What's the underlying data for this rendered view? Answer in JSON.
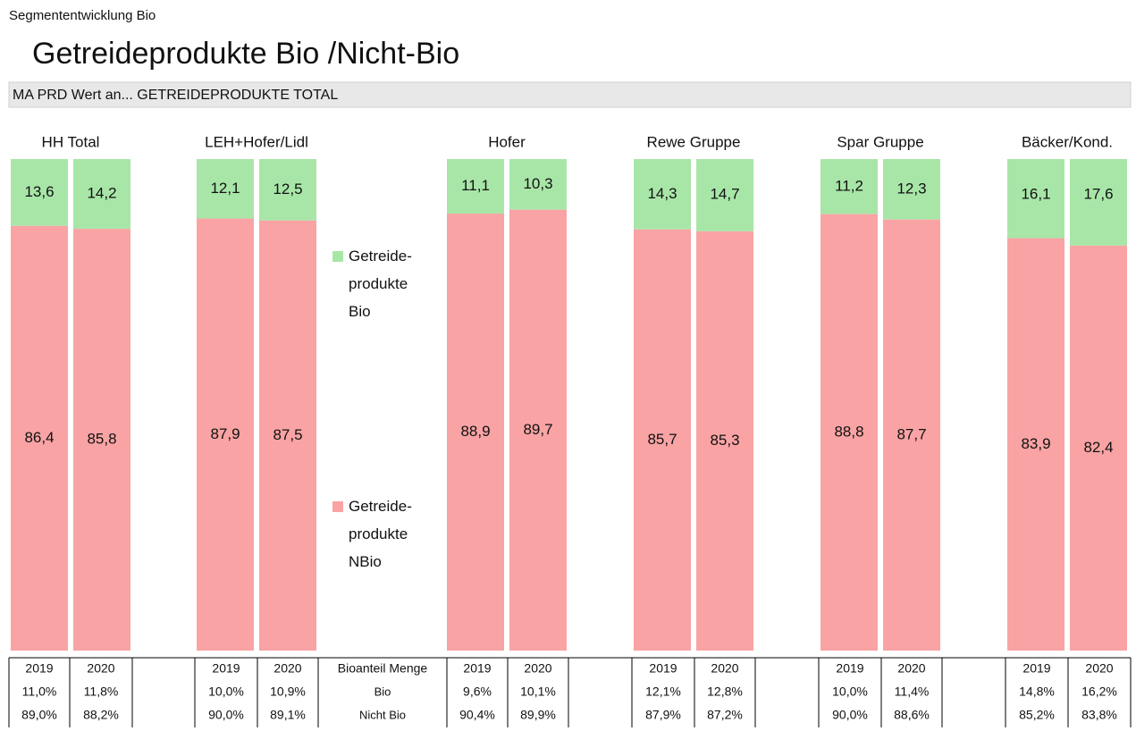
{
  "chart_data": {
    "type": "stacked_bar_100",
    "subtitle": "Segmententwicklung Bio",
    "title": "Getreideprodukte Bio /Nicht-Bio",
    "filter": "MA PRD Wert an... GETREIDEPRODUKTE TOTAL",
    "categories": [
      "HH Total",
      "LEH+Hofer/Lidl",
      "Hofer",
      "Rewe Gruppe",
      "Spar Gruppe",
      "Bäcker/Kond."
    ],
    "series": [
      {
        "name": "Getreide- produkte Bio",
        "color": "#a8e6a8",
        "values": [
          [
            13.6,
            14.2
          ],
          [
            12.1,
            12.5
          ],
          [
            11.1,
            10.3
          ],
          [
            14.3,
            14.7
          ],
          [
            11.2,
            12.3
          ],
          [
            16.1,
            17.6
          ]
        ],
        "value_labels": [
          [
            "13,6",
            "14,2"
          ],
          [
            "12,1",
            "12,5"
          ],
          [
            "11,1",
            "10,3"
          ],
          [
            "14,3",
            "14,7"
          ],
          [
            "11,2",
            "12,3"
          ],
          [
            "16,1",
            "17,6"
          ]
        ]
      },
      {
        "name": "Getreide- produkte NBio",
        "color": "#f9a3a4",
        "values": [
          [
            86.4,
            85.8
          ],
          [
            87.9,
            87.5
          ],
          [
            88.9,
            89.7
          ],
          [
            85.7,
            85.3
          ],
          [
            88.8,
            87.7
          ],
          [
            83.9,
            82.4
          ]
        ],
        "value_labels": [
          [
            "86,4",
            "85,8"
          ],
          [
            "87,9",
            "87,5"
          ],
          [
            "88,9",
            "89,7"
          ],
          [
            "85,7",
            "85,3"
          ],
          [
            "88,8",
            "87,7"
          ],
          [
            "83,9",
            "82,4"
          ]
        ]
      }
    ]
  },
  "table": {
    "header_label": "Bioanteil Menge",
    "row_labels": [
      "Bio",
      "Nicht Bio"
    ],
    "groups": [
      {
        "years": [
          "2019",
          "2020"
        ],
        "bio": [
          "11,0%",
          "11,8%"
        ],
        "nbio": [
          "89,0%",
          "88,2%"
        ]
      },
      {
        "years": [
          "2019",
          "2020"
        ],
        "bio": [
          "10,0%",
          "10,9%"
        ],
        "nbio": [
          "90,0%",
          "89,1%"
        ]
      },
      {
        "years": [
          "2019",
          "2020"
        ],
        "bio": [
          "9,6%",
          "10,1%"
        ],
        "nbio": [
          "90,4%",
          "89,9%"
        ]
      },
      {
        "years": [
          "2019",
          "2020"
        ],
        "bio": [
          "12,1%",
          "12,8%"
        ],
        "nbio": [
          "87,9%",
          "87,2%"
        ]
      },
      {
        "years": [
          "2019",
          "2020"
        ],
        "bio": [
          "10,0%",
          "11,4%"
        ],
        "nbio": [
          "90,0%",
          "88,6%"
        ]
      },
      {
        "years": [
          "2019",
          "2020"
        ],
        "bio": [
          "14,8%",
          "16,2%"
        ],
        "nbio": [
          "85,2%",
          "83,8%"
        ]
      }
    ]
  }
}
